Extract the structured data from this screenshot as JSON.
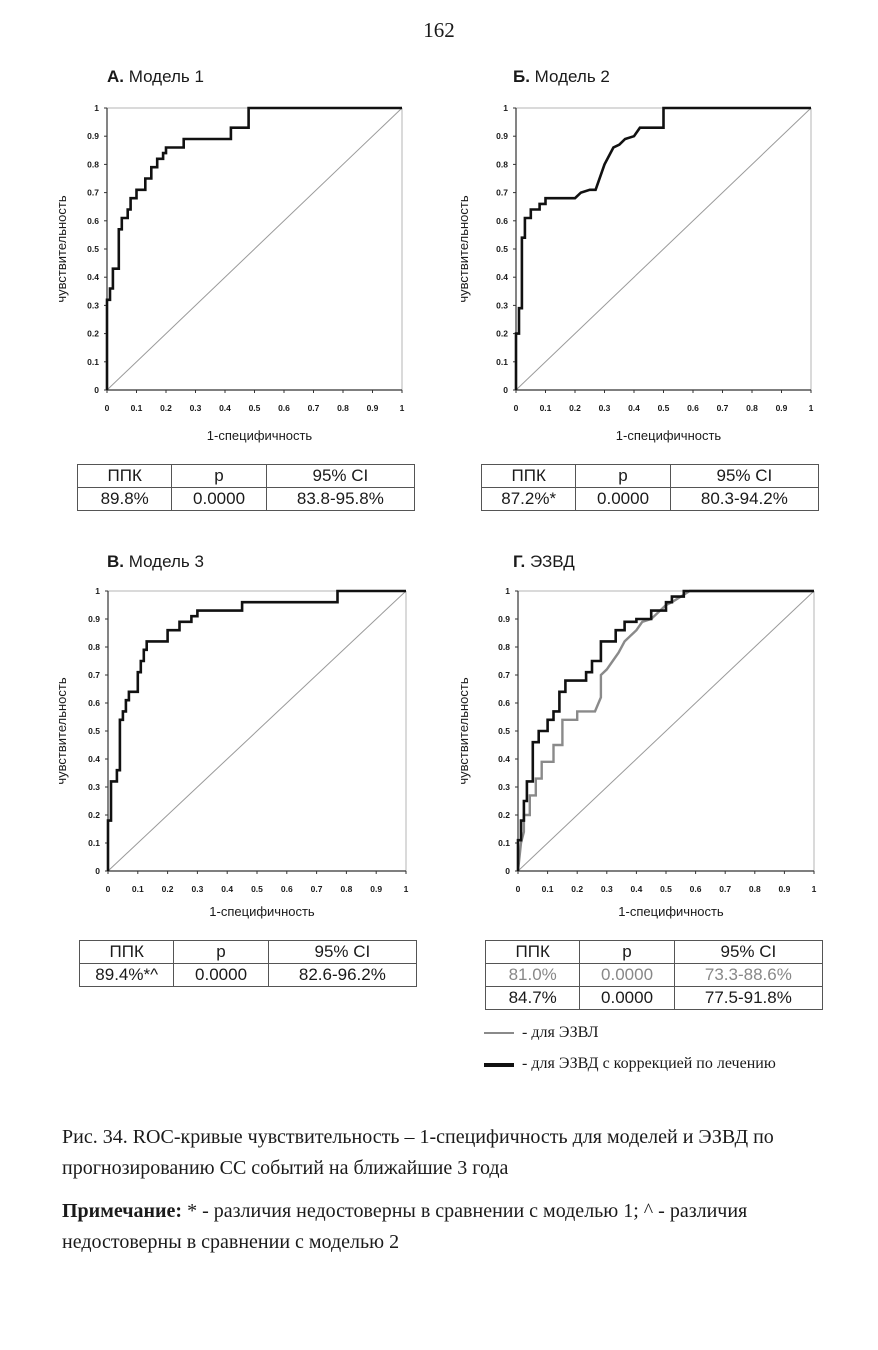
{
  "page_number": "162",
  "chart_data": [
    {
      "type": "line",
      "panel_letter": "А.",
      "title": "Модель 1",
      "xlabel": "1-специфичность",
      "ylabel": "чувствительность",
      "xlim": [
        0,
        1
      ],
      "ylim": [
        0,
        1
      ],
      "xticks": [
        "0",
        "0.1",
        "0.2",
        "0.3",
        "0.4",
        "0.5",
        "0.6",
        "0.7",
        "0.8",
        "0.9",
        "1"
      ],
      "yticks": [
        "0",
        "0.1",
        "0.2",
        "0.3",
        "0.4",
        "0.5",
        "0.6",
        "0.7",
        "0.8",
        "0.9",
        "1"
      ],
      "series": [
        {
          "color": "#111111",
          "width": 2.6,
          "x": [
            0,
            0,
            0.01,
            0.01,
            0.02,
            0.02,
            0.04,
            0.04,
            0.05,
            0.05,
            0.07,
            0.07,
            0.08,
            0.08,
            0.1,
            0.1,
            0.13,
            0.13,
            0.15,
            0.15,
            0.17,
            0.17,
            0.19,
            0.19,
            0.2,
            0.2,
            0.26,
            0.26,
            0.42,
            0.42,
            0.48,
            0.48,
            1
          ],
          "y": [
            0,
            0.32,
            0.32,
            0.36,
            0.36,
            0.43,
            0.43,
            0.57,
            0.57,
            0.61,
            0.61,
            0.64,
            0.64,
            0.68,
            0.68,
            0.71,
            0.71,
            0.75,
            0.75,
            0.79,
            0.79,
            0.82,
            0.82,
            0.84,
            0.84,
            0.86,
            0.86,
            0.89,
            0.89,
            0.93,
            0.93,
            1,
            1
          ]
        }
      ],
      "diagonal": true,
      "table": {
        "headers": [
          "ППК",
          "p",
          "95% CI"
        ],
        "rows": [
          {
            "cells": [
              "89.8%",
              "0.0000",
              "83.8-95.8%"
            ],
            "muted": false
          }
        ]
      }
    },
    {
      "type": "line",
      "panel_letter": "Б.",
      "title": "Модель 2",
      "xlabel": "1-специфичность",
      "ylabel": "чувствительность",
      "xlim": [
        0,
        1
      ],
      "ylim": [
        0,
        1
      ],
      "xticks": [
        "0",
        "0.1",
        "0.2",
        "0.3",
        "0.4",
        "0.5",
        "0.6",
        "0.7",
        "0.8",
        "0.9",
        "1"
      ],
      "yticks": [
        "0",
        "0.1",
        "0.2",
        "0.3",
        "0.4",
        "0.5",
        "0.6",
        "0.7",
        "0.8",
        "0.9",
        "1"
      ],
      "series": [
        {
          "color": "#111111",
          "width": 2.6,
          "x": [
            0,
            0,
            0.01,
            0.01,
            0.02,
            0.02,
            0.03,
            0.03,
            0.05,
            0.05,
            0.08,
            0.08,
            0.1,
            0.1,
            0.2,
            0.22,
            0.25,
            0.27,
            0.3,
            0.33,
            0.35,
            0.37,
            0.4,
            0.42,
            0.5,
            0.5,
            1
          ],
          "y": [
            0,
            0.2,
            0.2,
            0.29,
            0.29,
            0.54,
            0.54,
            0.61,
            0.61,
            0.64,
            0.64,
            0.66,
            0.66,
            0.68,
            0.68,
            0.7,
            0.71,
            0.71,
            0.8,
            0.86,
            0.87,
            0.89,
            0.9,
            0.93,
            0.93,
            1,
            1
          ]
        }
      ],
      "diagonal": true,
      "table": {
        "headers": [
          "ППК",
          "p",
          "95% CI"
        ],
        "rows": [
          {
            "cells": [
              "87.2%*",
              "0.0000",
              "80.3-94.2%"
            ],
            "muted": false
          }
        ]
      }
    },
    {
      "type": "line",
      "panel_letter": "В.",
      "title": "Модель 3",
      "xlabel": "1-специфичность",
      "ylabel": "чувствительность",
      "xlim": [
        0,
        1
      ],
      "ylim": [
        0,
        1
      ],
      "xticks": [
        "0",
        "0.1",
        "0.2",
        "0.3",
        "0.4",
        "0.5",
        "0.6",
        "0.7",
        "0.8",
        "0.9",
        "1"
      ],
      "yticks": [
        "0",
        "0.1",
        "0.2",
        "0.3",
        "0.4",
        "0.5",
        "0.6",
        "0.7",
        "0.8",
        "0.9",
        "1"
      ],
      "series": [
        {
          "color": "#111111",
          "width": 2.6,
          "x": [
            0,
            0,
            0.01,
            0.01,
            0.03,
            0.03,
            0.04,
            0.04,
            0.05,
            0.05,
            0.06,
            0.06,
            0.07,
            0.07,
            0.1,
            0.1,
            0.11,
            0.11,
            0.12,
            0.12,
            0.13,
            0.13,
            0.14,
            0.14,
            0.2,
            0.2,
            0.24,
            0.24,
            0.28,
            0.28,
            0.3,
            0.3,
            0.45,
            0.45,
            0.77,
            0.77,
            1
          ],
          "y": [
            0,
            0.18,
            0.18,
            0.32,
            0.32,
            0.36,
            0.36,
            0.54,
            0.54,
            0.57,
            0.57,
            0.61,
            0.61,
            0.64,
            0.64,
            0.71,
            0.71,
            0.75,
            0.75,
            0.79,
            0.79,
            0.82,
            0.82,
            0.82,
            0.82,
            0.86,
            0.86,
            0.89,
            0.89,
            0.91,
            0.91,
            0.93,
            0.93,
            0.96,
            0.96,
            1,
            1
          ]
        }
      ],
      "diagonal": true,
      "table": {
        "headers": [
          "ППК",
          "p",
          "95% CI"
        ],
        "rows": [
          {
            "cells": [
              "89.4%*^",
              "0.0000",
              "82.6-96.2%"
            ],
            "muted": false
          }
        ]
      }
    },
    {
      "type": "line",
      "panel_letter": "Г.",
      "title": "ЭЗВД",
      "xlabel": "1-специфичность",
      "ylabel": "чувствительность",
      "xlim": [
        0,
        1
      ],
      "ylim": [
        0,
        1
      ],
      "xticks": [
        "0",
        "0.1",
        "0.2",
        "0.3",
        "0.4",
        "0.5",
        "0.6",
        "0.7",
        "0.8",
        "0.9",
        "1"
      ],
      "yticks": [
        "0",
        "0.1",
        "0.2",
        "0.3",
        "0.4",
        "0.5",
        "0.6",
        "0.7",
        "0.8",
        "0.9",
        "1"
      ],
      "series": [
        {
          "name": "- для ЭЗВЛ",
          "color": "#8a8a8a",
          "width": 2.4,
          "x": [
            0,
            0.01,
            0.02,
            0.02,
            0.04,
            0.04,
            0.06,
            0.06,
            0.08,
            0.08,
            0.12,
            0.12,
            0.15,
            0.15,
            0.2,
            0.2,
            0.23,
            0.26,
            0.28,
            0.28,
            0.3,
            0.32,
            0.34,
            0.36,
            0.38,
            0.4,
            0.42,
            0.45,
            0.48,
            0.5,
            0.52,
            0.55,
            0.58,
            1
          ],
          "y": [
            0,
            0.1,
            0.14,
            0.2,
            0.2,
            0.27,
            0.27,
            0.33,
            0.33,
            0.39,
            0.39,
            0.45,
            0.45,
            0.54,
            0.54,
            0.57,
            0.57,
            0.57,
            0.62,
            0.7,
            0.72,
            0.75,
            0.78,
            0.82,
            0.84,
            0.86,
            0.89,
            0.9,
            0.93,
            0.95,
            0.96,
            0.98,
            1,
            1
          ]
        },
        {
          "name": "- для ЭЗВД с коррекцией по лечению",
          "color": "#111111",
          "width": 2.6,
          "x": [
            0,
            0,
            0.01,
            0.01,
            0.02,
            0.02,
            0.03,
            0.03,
            0.05,
            0.05,
            0.07,
            0.07,
            0.1,
            0.1,
            0.12,
            0.12,
            0.14,
            0.14,
            0.16,
            0.16,
            0.23,
            0.23,
            0.25,
            0.25,
            0.28,
            0.28,
            0.33,
            0.33,
            0.36,
            0.36,
            0.4,
            0.4,
            0.45,
            0.45,
            0.5,
            0.5,
            0.52,
            0.52,
            0.56,
            0.56,
            1
          ],
          "y": [
            0,
            0.11,
            0.11,
            0.18,
            0.18,
            0.25,
            0.25,
            0.32,
            0.32,
            0.46,
            0.46,
            0.5,
            0.5,
            0.54,
            0.54,
            0.57,
            0.57,
            0.64,
            0.64,
            0.68,
            0.68,
            0.71,
            0.71,
            0.75,
            0.75,
            0.82,
            0.82,
            0.86,
            0.86,
            0.89,
            0.89,
            0.9,
            0.9,
            0.93,
            0.93,
            0.96,
            0.96,
            0.98,
            0.98,
            1,
            1
          ]
        }
      ],
      "diagonal": true,
      "table": {
        "headers": [
          "ППК",
          "p",
          "95% CI"
        ],
        "rows": [
          {
            "cells": [
              "81.0%",
              "0.0000",
              "73.3-88.6%"
            ],
            "muted": true
          },
          {
            "cells": [
              "84.7%",
              "0.0000",
              "77.5-91.8%"
            ],
            "muted": false
          }
        ]
      }
    }
  ],
  "legend": [
    {
      "label": "- для ЭЗВЛ",
      "color": "#8a8a8a"
    },
    {
      "label": "- для ЭЗВД с коррекцией по лечению",
      "color": "#111111"
    }
  ],
  "caption": "Рис. 34. ROC-кривые чувствительность – 1-специфичность для моделей и ЭЗВД по прогнозированию СС событий на ближайшие 3 года",
  "note": {
    "label": "Примечание:",
    "text": " * - различия недостоверны в сравнении с моделью 1; ^ - различия недостоверны в сравнении с моделью 2"
  }
}
